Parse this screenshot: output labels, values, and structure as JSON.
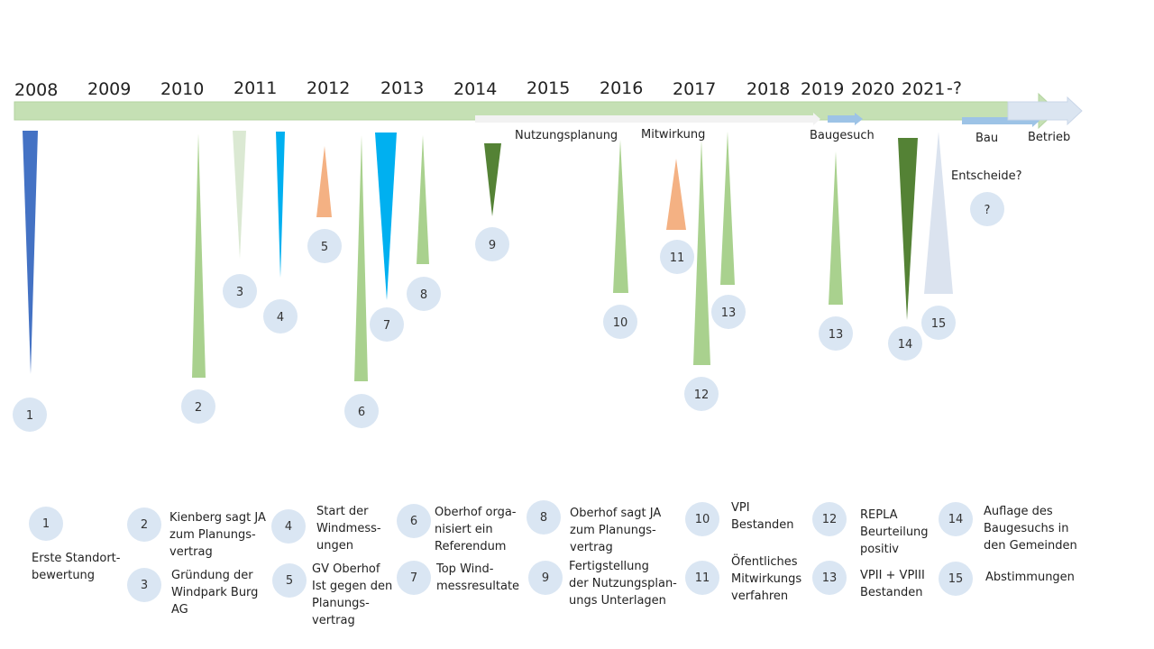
{
  "years": [
    "2008",
    "2009",
    "2010",
    "2011",
    "2012",
    "2013",
    "2014",
    "2015",
    "2016",
    "2017",
    "2018",
    "2019",
    "2020",
    "2021",
    "-?"
  ],
  "phases": {
    "nutzungsplanung": "Nutzungsplanung",
    "mitwirkung": "Mitwirkung",
    "baugesuch": "Baugesuch",
    "bau": "Bau",
    "betrieb": "Betrieb",
    "entscheide": "Entscheide?",
    "question": "?"
  },
  "events": [
    {
      "num": "1",
      "color": "#4472c4"
    },
    {
      "num": "2",
      "color": "#a9d18e"
    },
    {
      "num": "3",
      "color": "#dbe9d3"
    },
    {
      "num": "4",
      "color": "#00b0f0"
    },
    {
      "num": "5",
      "color": "#f4b183"
    },
    {
      "num": "6",
      "color": "#a9d18e"
    },
    {
      "num": "7",
      "color": "#00b0f0"
    },
    {
      "num": "8",
      "color": "#a9d18e"
    },
    {
      "num": "9",
      "color": "#548235"
    },
    {
      "num": "10",
      "color": "#a9d18e"
    },
    {
      "num": "11",
      "color": "#f4b183"
    },
    {
      "num": "12",
      "color": "#a9d18e"
    },
    {
      "num": "13",
      "color": "#a9d18e"
    },
    {
      "num": "13",
      "color": "#a9d18e"
    },
    {
      "num": "14",
      "color": "#548235"
    },
    {
      "num": "15",
      "color": "#d6dfee"
    }
  ],
  "legend": [
    {
      "num": "1",
      "text": "Erste Standort-\nbewertung"
    },
    {
      "num": "2",
      "text": "Kienberg sagt JA\nzum Planungs-\nvertrag"
    },
    {
      "num": "3",
      "text": "Gründung der\nWindpark Burg\nAG"
    },
    {
      "num": "4",
      "text": "Start der\nWindmess-\nungen"
    },
    {
      "num": "5",
      "text": "GV Oberhof\nIst gegen den\nPlanungs-\nvertrag"
    },
    {
      "num": "6",
      "text": "Oberhof orga-\nnisiert ein\nReferendum"
    },
    {
      "num": "7",
      "text": "Top Wind-\nmessresultate"
    },
    {
      "num": "8",
      "text": "Oberhof sagt JA\nzum Planungs-\nvertrag"
    },
    {
      "num": "9",
      "text": "Fertigstellung\nder Nutzungsplan-\nungs Unterlagen"
    },
    {
      "num": "10",
      "text": "VPI\nBestanden"
    },
    {
      "num": "11",
      "text": "Öfentliches\nMitwirkungs\nverfahren"
    },
    {
      "num": "12",
      "text": "REPLA\nBeurteilung\npositiv"
    },
    {
      "num": "13",
      "text": "VPII + VPIII\nBestanden"
    },
    {
      "num": "14",
      "text": "Auflage des\nBaugesuchs in\nden Gemeinden"
    },
    {
      "num": "15",
      "text": "Abstimmungen"
    }
  ]
}
